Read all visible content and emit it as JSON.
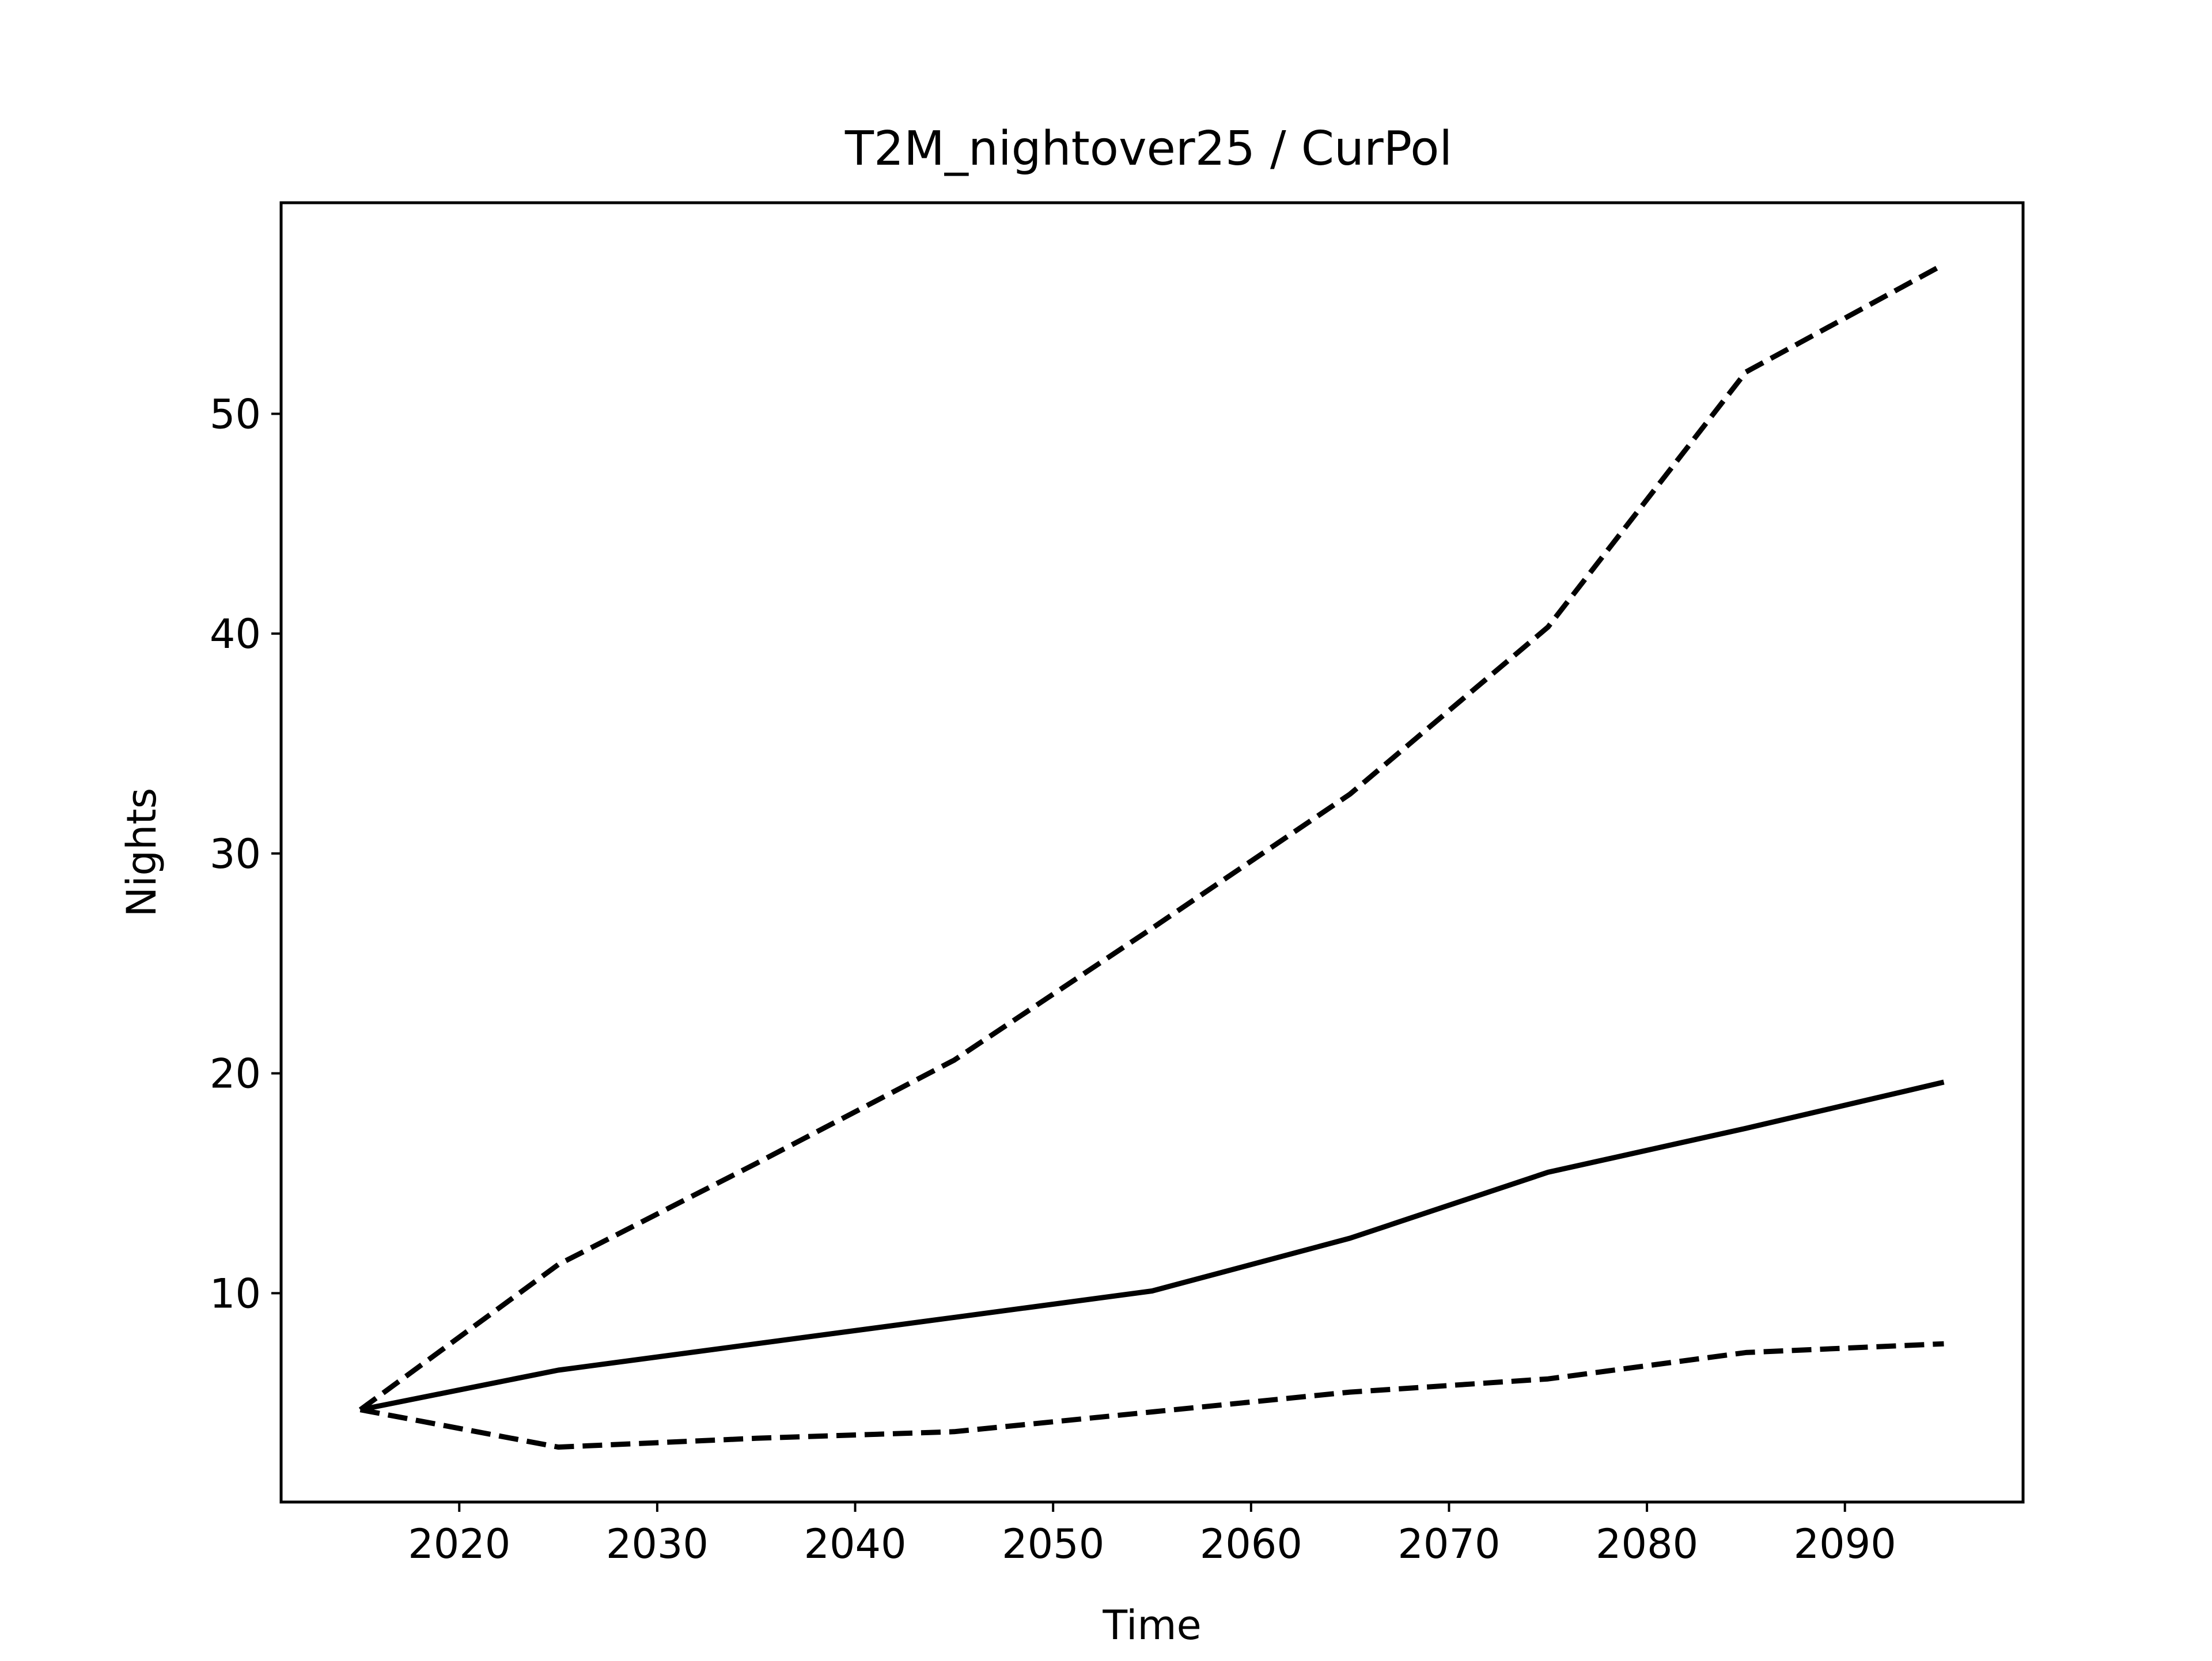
{
  "chart_data": {
    "type": "line",
    "title": "T2M_nightover25 / CurPol",
    "xlabel": "Time",
    "ylabel": "Nights",
    "xlim": [
      2011,
      2099
    ],
    "ylim": [
      0.5,
      59.6
    ],
    "xticks": [
      2020,
      2030,
      2040,
      2050,
      2060,
      2070,
      2080,
      2090
    ],
    "yticks": [
      10,
      20,
      30,
      40,
      50
    ],
    "grid": false,
    "legend": "none",
    "x": [
      2015,
      2025,
      2035,
      2045,
      2055,
      2065,
      2075,
      2085,
      2095
    ],
    "series": [
      {
        "style": "solid",
        "color": "#000000",
        "values": [
          4.7,
          6.5,
          7.7,
          8.9,
          10.1,
          12.5,
          15.5,
          17.5,
          19.6
        ]
      },
      {
        "style": "dashed",
        "color": "#000000",
        "values": [
          4.7,
          11.3,
          15.9,
          20.6,
          26.6,
          32.7,
          40.3,
          51.9,
          56.8
        ]
      },
      {
        "style": "dashed",
        "color": "#000000",
        "values": [
          4.7,
          3.0,
          3.4,
          3.7,
          4.6,
          5.5,
          6.1,
          7.3,
          7.7
        ]
      }
    ]
  }
}
